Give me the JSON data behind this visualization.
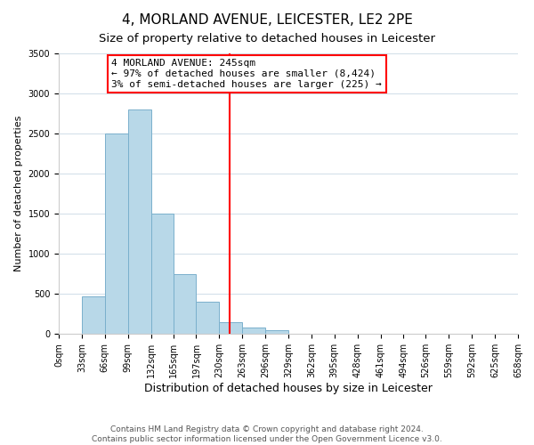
{
  "title": "4, MORLAND AVENUE, LEICESTER, LE2 2PE",
  "subtitle": "Size of property relative to detached houses in Leicester",
  "xlabel": "Distribution of detached houses by size in Leicester",
  "ylabel": "Number of detached properties",
  "bin_edges": [
    0,
    33,
    66,
    99,
    132,
    165,
    197,
    230,
    263,
    296,
    329,
    362,
    395,
    428,
    461,
    494,
    526,
    559,
    592,
    625,
    658
  ],
  "bin_labels": [
    "0sqm",
    "33sqm",
    "66sqm",
    "99sqm",
    "132sqm",
    "165sqm",
    "197sqm",
    "230sqm",
    "263sqm",
    "296sqm",
    "329sqm",
    "362sqm",
    "395sqm",
    "428sqm",
    "461sqm",
    "494sqm",
    "526sqm",
    "559sqm",
    "592sqm",
    "625sqm",
    "658sqm"
  ],
  "bar_heights": [
    0,
    470,
    2500,
    2800,
    1500,
    750,
    400,
    150,
    80,
    50,
    0,
    0,
    0,
    0,
    0,
    0,
    0,
    0,
    0,
    0
  ],
  "bar_color": "#b8d8e8",
  "bar_edge_color": "#7ab0cc",
  "vline_x": 245,
  "vline_color": "red",
  "annotation_line1": "4 MORLAND AVENUE: 245sqm",
  "annotation_line2": "← 97% of detached houses are smaller (8,424)",
  "annotation_line3": "3% of semi-detached houses are larger (225) →",
  "ylim": [
    0,
    3500
  ],
  "yticks": [
    0,
    500,
    1000,
    1500,
    2000,
    2500,
    3000,
    3500
  ],
  "footer_line1": "Contains HM Land Registry data © Crown copyright and database right 2024.",
  "footer_line2": "Contains public sector information licensed under the Open Government Licence v3.0.",
  "title_fontsize": 11,
  "subtitle_fontsize": 9.5,
  "xlabel_fontsize": 9,
  "ylabel_fontsize": 8,
  "tick_fontsize": 7,
  "footer_fontsize": 6.5,
  "annotation_fontsize": 8
}
